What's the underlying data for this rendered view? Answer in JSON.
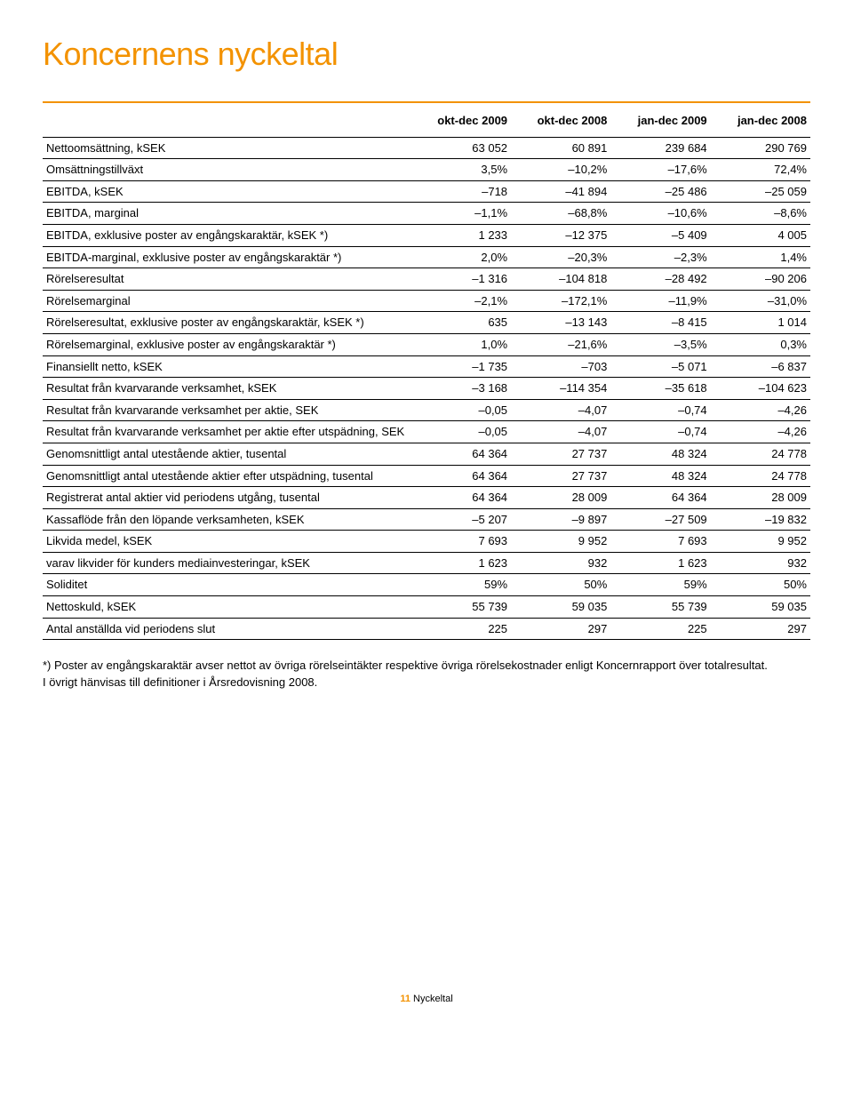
{
  "title": "Koncernens nyckeltal",
  "columns": [
    "okt-dec 2009",
    "okt-dec 2008",
    "jan-dec 2009",
    "jan-dec 2008"
  ],
  "rows": [
    {
      "label": "Nettoomsättning, kSEK",
      "v": [
        "63 052",
        "60 891",
        "239 684",
        "290 769"
      ]
    },
    {
      "label": "Omsättningstillväxt",
      "v": [
        "3,5%",
        "–10,2%",
        "–17,6%",
        "72,4%"
      ]
    },
    {
      "label": "EBITDA, kSEK",
      "v": [
        "–718",
        "–41 894",
        "–25 486",
        "–25 059"
      ]
    },
    {
      "label": "EBITDA, marginal",
      "v": [
        "–1,1%",
        "–68,8%",
        "–10,6%",
        "–8,6%"
      ]
    },
    {
      "label": "EBITDA, exklusive poster av engångskaraktär, kSEK *)",
      "v": [
        "1 233",
        "–12 375",
        "–5 409",
        "4 005"
      ]
    },
    {
      "label": "EBITDA-marginal, exklusive poster av engångskaraktär *)",
      "v": [
        "2,0%",
        "–20,3%",
        "–2,3%",
        "1,4%"
      ]
    },
    {
      "label": "Rörelseresultat",
      "v": [
        "–1 316",
        "–104 818",
        "–28 492",
        "–90 206"
      ]
    },
    {
      "label": "Rörelsemarginal",
      "v": [
        "–2,1%",
        "–172,1%",
        "–11,9%",
        "–31,0%"
      ]
    },
    {
      "label": "Rörelseresultat, exklusive poster av engångskaraktär, kSEK *)",
      "v": [
        "635",
        "–13 143",
        "–8 415",
        "1 014"
      ]
    },
    {
      "label": "Rörelsemarginal, exklusive poster av engångskaraktär *)",
      "v": [
        "1,0%",
        "–21,6%",
        "–3,5%",
        "0,3%"
      ]
    },
    {
      "label": "Finansiellt netto, kSEK",
      "v": [
        "–1 735",
        "–703",
        "–5 071",
        "–6 837"
      ]
    },
    {
      "label": "Resultat från kvarvarande verksamhet, kSEK",
      "v": [
        "–3 168",
        "–114 354",
        "–35 618",
        "–104 623"
      ]
    },
    {
      "label": "Resultat från kvarvarande verksamhet per aktie, SEK",
      "v": [
        "–0,05",
        "–4,07",
        "–0,74",
        "–4,26"
      ]
    },
    {
      "label": "Resultat från kvarvarande verksamhet per aktie efter utspädning, SEK",
      "v": [
        "–0,05",
        "–4,07",
        "–0,74",
        "–4,26"
      ]
    },
    {
      "label": "Genomsnittligt antal utestående aktier, tusental",
      "v": [
        "64 364",
        "27 737",
        "48 324",
        "24 778"
      ]
    },
    {
      "label": "Genomsnittligt antal utestående aktier efter utspädning, tusental",
      "v": [
        "64 364",
        "27 737",
        "48 324",
        "24 778"
      ]
    },
    {
      "label": "Registrerat antal aktier vid periodens utgång, tusental",
      "v": [
        "64 364",
        "28 009",
        "64 364",
        "28 009"
      ]
    },
    {
      "label": "Kassaflöde från den löpande verksamheten, kSEK",
      "v": [
        "–5 207",
        "–9 897",
        "–27 509",
        "–19 832"
      ]
    },
    {
      "label": "Likvida medel, kSEK",
      "v": [
        "7 693",
        "9 952",
        "7 693",
        "9 952"
      ]
    },
    {
      "label": "varav likvider för kunders mediainvesteringar, kSEK",
      "v": [
        "1 623",
        "932",
        "1 623",
        "932"
      ]
    },
    {
      "label": "Soliditet",
      "v": [
        "59%",
        "50%",
        "59%",
        "50%"
      ]
    },
    {
      "label": "Nettoskuld, kSEK",
      "v": [
        "55 739",
        "59 035",
        "55 739",
        "59 035"
      ]
    },
    {
      "label": "Antal anställda vid periodens slut",
      "v": [
        "225",
        "297",
        "225",
        "297"
      ]
    }
  ],
  "footnote_line1": "*) Poster av engångskaraktär avser nettot av övriga rörelseintäkter respektive övriga rörelsekostnader enligt Koncernrapport över totalresultat.",
  "footnote_line2": "I övrigt hänvisas till definitioner i Årsredovisning 2008.",
  "footer": {
    "page": "11",
    "section": "Nyckeltal"
  },
  "colors": {
    "accent": "#f39200",
    "text": "#000000",
    "background": "#ffffff",
    "rule": "#000000"
  }
}
